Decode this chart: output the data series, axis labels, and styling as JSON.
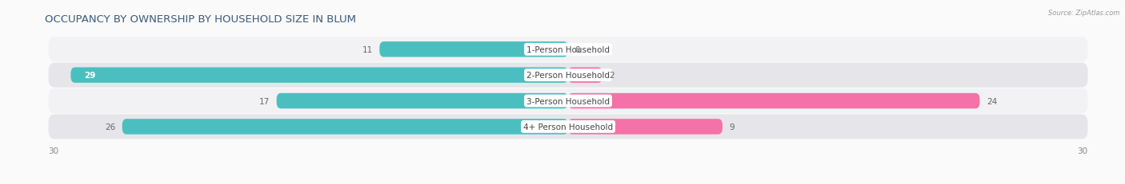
{
  "title": "OCCUPANCY BY OWNERSHIP BY HOUSEHOLD SIZE IN BLUM",
  "source": "Source: ZipAtlas.com",
  "categories": [
    "1-Person Household",
    "2-Person Household",
    "3-Person Household",
    "4+ Person Household"
  ],
  "owner_values": [
    11,
    29,
    17,
    26
  ],
  "renter_values": [
    0,
    2,
    24,
    9
  ],
  "owner_color": "#4BBFC0",
  "renter_color": "#F472A8",
  "row_bg_colors": [
    "#F2F2F4",
    "#E6E6EA",
    "#F2F2F4",
    "#E6E6EA"
  ],
  "label_bg": "#FFFFFF",
  "x_max": 30,
  "title_fontsize": 9.5,
  "label_fontsize": 7.5,
  "tick_fontsize": 7.5,
  "figsize": [
    14.06,
    2.32
  ],
  "dpi": 100,
  "fig_bg": "#FAFAFA"
}
